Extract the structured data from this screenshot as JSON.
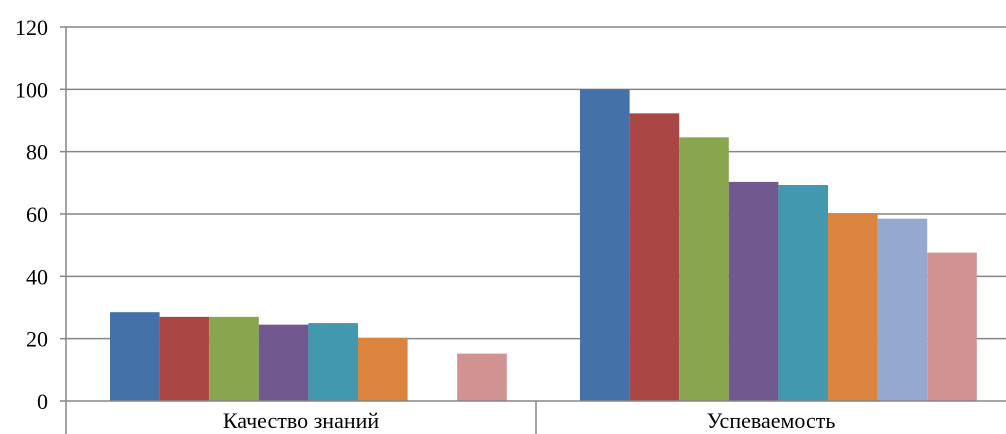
{
  "chart_data": {
    "type": "bar",
    "title": "",
    "xlabel": "",
    "ylabel": "",
    "ylim": [
      0,
      120
    ],
    "yticks": [
      "0",
      "20",
      "40",
      "60",
      "80",
      "100",
      "120"
    ],
    "grid": true,
    "categories": [
      "Качество знаний",
      "Успеваемость"
    ],
    "series": [
      {
        "color": "#4472A8",
        "values": [
          28.5,
          100
        ]
      },
      {
        "color": "#AA4643",
        "values": [
          27,
          92.3
        ]
      },
      {
        "color": "#89A54E",
        "values": [
          27,
          84.6
        ]
      },
      {
        "color": "#71588F",
        "values": [
          24.5,
          70.3
        ]
      },
      {
        "color": "#4198AF",
        "values": [
          25,
          69.3
        ]
      },
      {
        "color": "#DB843D",
        "values": [
          20.3,
          60.3
        ]
      },
      {
        "color": "#93A9CF",
        "values": [
          null,
          58.5
        ]
      },
      {
        "color": "#D19392",
        "values": [
          15.2,
          47.6
        ]
      }
    ]
  }
}
